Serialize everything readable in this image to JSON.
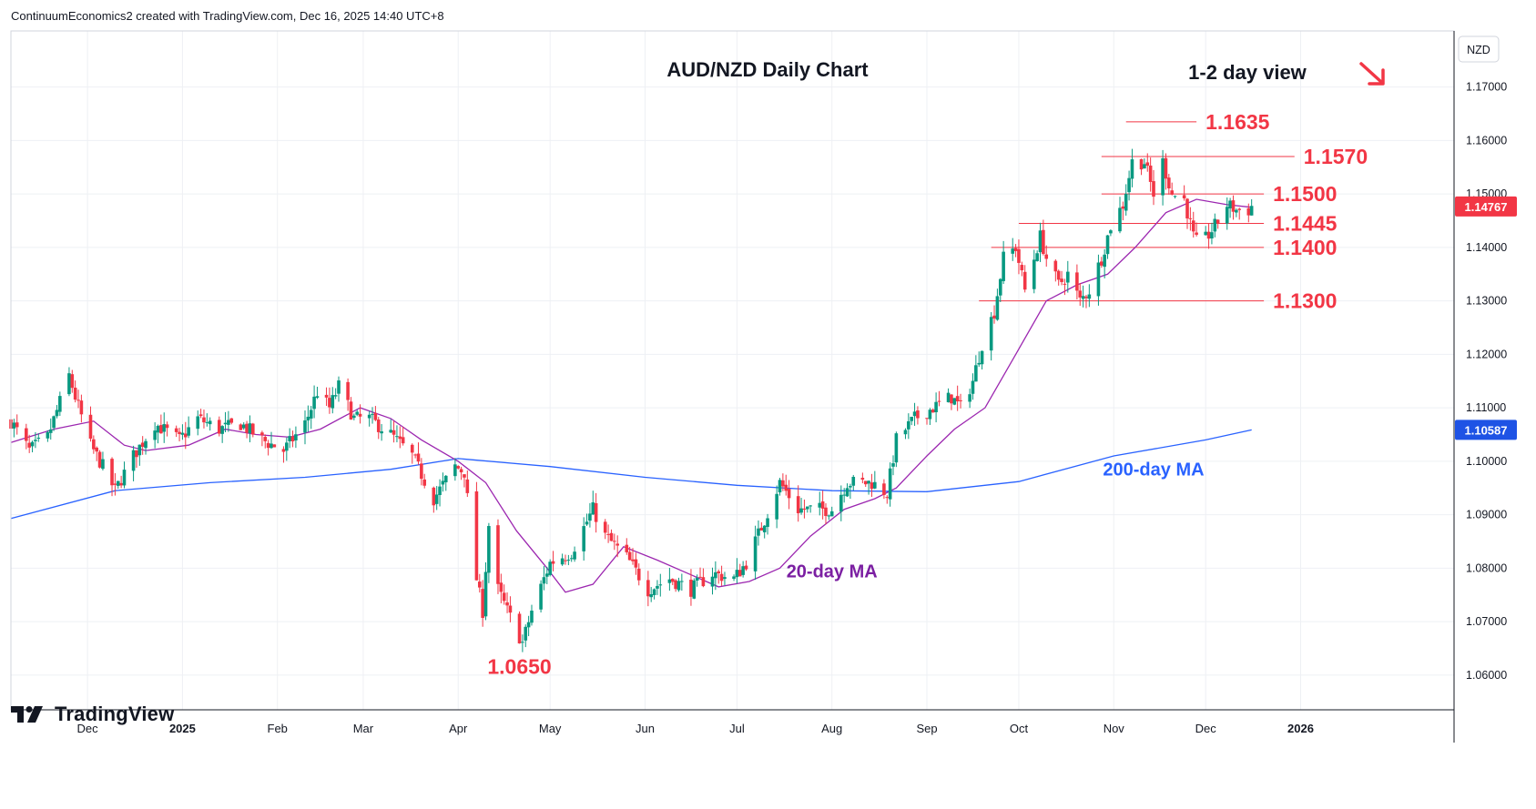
{
  "header": {
    "text": "ContinuumEconomics2 created with TradingView.com, Dec 16, 2025 14:40 UTC+8"
  },
  "footer": {
    "brand": "TradingView",
    "logo_icon": "tradingview-logo-icon"
  },
  "chart_data": {
    "type": "candlestick",
    "title": "AUD/NZD Daily Chart",
    "view_label": "1-2 day view",
    "view_arrow": "down-right-arrow",
    "currency_label": "NZD",
    "y_ticks": [
      "1.06000",
      "1.07000",
      "1.08000",
      "1.09000",
      "1.10000",
      "1.11000",
      "1.12000",
      "1.13000",
      "1.14000",
      "1.15000",
      "1.16000",
      "1.17000"
    ],
    "y_range": [
      1.0535,
      1.1805
    ],
    "x_ticks": [
      {
        "label": "Dec",
        "date": "2024-12-01"
      },
      {
        "label": "2025",
        "date": "2025-01-01"
      },
      {
        "label": "Feb",
        "date": "2025-02-01"
      },
      {
        "label": "Mar",
        "date": "2025-03-01"
      },
      {
        "label": "Apr",
        "date": "2025-04-01"
      },
      {
        "label": "May",
        "date": "2025-05-01"
      },
      {
        "label": "Jun",
        "date": "2025-06-01"
      },
      {
        "label": "Jul",
        "date": "2025-07-01"
      },
      {
        "label": "Aug",
        "date": "2025-08-01"
      },
      {
        "label": "Sep",
        "date": "2025-09-01"
      },
      {
        "label": "Oct",
        "date": "2025-10-01"
      },
      {
        "label": "Nov",
        "date": "2025-11-01"
      },
      {
        "label": "Dec",
        "date": "2025-12-01"
      },
      {
        "label": "2026",
        "date": "2026-01-01"
      }
    ],
    "x_range": [
      "2024-11-06",
      "2026-02-18"
    ],
    "price_badges": [
      {
        "label": "1.14767",
        "value": 1.14767,
        "color": "#f23645"
      },
      {
        "label": "1.10587",
        "value": 1.10587,
        "color": "#1e53e5"
      }
    ],
    "levels": [
      {
        "label": "1.1635",
        "value": 1.1635,
        "from": "2025-11-05",
        "to": "2025-11-28"
      },
      {
        "label": "1.1570",
        "value": 1.157,
        "from": "2025-10-28",
        "to": "2025-12-30"
      },
      {
        "label": "1.1500",
        "value": 1.15,
        "from": "2025-10-28",
        "to": "2025-12-20"
      },
      {
        "label": "1.1445",
        "value": 1.1445,
        "from": "2025-10-01",
        "to": "2025-12-20"
      },
      {
        "label": "1.1400",
        "value": 1.14,
        "from": "2025-09-22",
        "to": "2025-12-20"
      },
      {
        "label": "1.1300",
        "value": 1.13,
        "from": "2025-09-18",
        "to": "2025-12-20"
      }
    ],
    "low_label": {
      "label": "1.0650",
      "value": 1.065,
      "date": "2025-04-21"
    },
    "ma20_label": "20-day MA",
    "ma200_label": "200-day MA",
    "colors": {
      "up": "#089981",
      "down": "#f23645",
      "ma20": "#9c27b0",
      "ma200": "#2962ff",
      "annotation": "#f23645",
      "ma20_text": "#7b1fa2",
      "ma200_text": "#2962ff"
    },
    "close_path": [
      [
        "2024-11-06",
        1.1075
      ],
      [
        "2024-11-12",
        1.102
      ],
      [
        "2024-11-18",
        1.1045
      ],
      [
        "2024-11-25",
        1.116
      ],
      [
        "2024-11-27",
        1.112
      ],
      [
        "2024-12-02",
        1.103
      ],
      [
        "2024-12-06",
        1.099
      ],
      [
        "2024-12-10",
        1.0945
      ],
      [
        "2024-12-16",
        1.101
      ],
      [
        "2024-12-23",
        1.107
      ],
      [
        "2024-12-31",
        1.104
      ],
      [
        "2025-01-06",
        1.108
      ],
      [
        "2025-01-13",
        1.106
      ],
      [
        "2025-01-20",
        1.107
      ],
      [
        "2025-01-27",
        1.104
      ],
      [
        "2025-02-03",
        1.102
      ],
      [
        "2025-02-10",
        1.107
      ],
      [
        "2025-02-14",
        1.113
      ],
      [
        "2025-02-18",
        1.11
      ],
      [
        "2025-02-21",
        1.114
      ],
      [
        "2025-02-26",
        1.108
      ],
      [
        "2025-03-03",
        1.108
      ],
      [
        "2025-03-10",
        1.105
      ],
      [
        "2025-03-17",
        1.101
      ],
      [
        "2025-03-24",
        1.093
      ],
      [
        "2025-03-31",
        1.099
      ],
      [
        "2025-04-03",
        1.098
      ],
      [
        "2025-04-07",
        1.078
      ],
      [
        "2025-04-09",
        1.072
      ],
      [
        "2025-04-11",
        1.088
      ],
      [
        "2025-04-14",
        1.076
      ],
      [
        "2025-04-17",
        1.072
      ],
      [
        "2025-04-22",
        1.066
      ],
      [
        "2025-04-25",
        1.072
      ],
      [
        "2025-05-01",
        1.081
      ],
      [
        "2025-05-08",
        1.083
      ],
      [
        "2025-05-15",
        1.091
      ],
      [
        "2025-05-19",
        1.086
      ],
      [
        "2025-05-26",
        1.082
      ],
      [
        "2025-06-02",
        1.076
      ],
      [
        "2025-06-09",
        1.078
      ],
      [
        "2025-06-16",
        1.076
      ],
      [
        "2025-06-23",
        1.079
      ],
      [
        "2025-06-30",
        1.078
      ],
      [
        "2025-07-04",
        1.081
      ],
      [
        "2025-07-10",
        1.089
      ],
      [
        "2025-07-15",
        1.096
      ],
      [
        "2025-07-21",
        1.091
      ],
      [
        "2025-07-28",
        1.091
      ],
      [
        "2025-08-01",
        1.091
      ],
      [
        "2025-08-06",
        1.096
      ],
      [
        "2025-08-14",
        1.096
      ],
      [
        "2025-08-19",
        1.094
      ],
      [
        "2025-08-22",
        1.104
      ],
      [
        "2025-08-28",
        1.108
      ],
      [
        "2025-09-03",
        1.11
      ],
      [
        "2025-09-09",
        1.112
      ],
      [
        "2025-09-12",
        1.11
      ],
      [
        "2025-09-16",
        1.115
      ],
      [
        "2025-09-19",
        1.122
      ],
      [
        "2025-09-23",
        1.128
      ],
      [
        "2025-09-26",
        1.138
      ],
      [
        "2025-09-30",
        1.14
      ],
      [
        "2025-10-03",
        1.132
      ],
      [
        "2025-10-08",
        1.142
      ],
      [
        "2025-10-10",
        1.138
      ],
      [
        "2025-10-14",
        1.133
      ],
      [
        "2025-10-17",
        1.135
      ],
      [
        "2025-10-21",
        1.13
      ],
      [
        "2025-10-24",
        1.132
      ],
      [
        "2025-10-28",
        1.138
      ],
      [
        "2025-10-31",
        1.144
      ],
      [
        "2025-11-04",
        1.148
      ],
      [
        "2025-11-07",
        1.156
      ],
      [
        "2025-11-11",
        1.156
      ],
      [
        "2025-11-14",
        1.15
      ],
      [
        "2025-11-17",
        1.156
      ],
      [
        "2025-11-20",
        1.15
      ],
      [
        "2025-11-24",
        1.149
      ],
      [
        "2025-11-27",
        1.142
      ],
      [
        "2025-11-29",
        1.14
      ],
      [
        "2025-12-04",
        1.144
      ],
      [
        "2025-12-08",
        1.148
      ],
      [
        "2025-12-11",
        1.147
      ],
      [
        "2025-12-15",
        1.147
      ],
      [
        "2025-12-16",
        1.14767
      ]
    ],
    "ma20_path": [
      [
        "2024-11-06",
        1.1035
      ],
      [
        "2024-11-20",
        1.106
      ],
      [
        "2024-12-03",
        1.1075
      ],
      [
        "2024-12-13",
        1.103
      ],
      [
        "2024-12-20",
        1.102
      ],
      [
        "2025-01-03",
        1.103
      ],
      [
        "2025-01-15",
        1.106
      ],
      [
        "2025-01-25",
        1.105
      ],
      [
        "2025-02-05",
        1.1045
      ],
      [
        "2025-02-15",
        1.106
      ],
      [
        "2025-02-28",
        1.11
      ],
      [
        "2025-03-10",
        1.108
      ],
      [
        "2025-03-20",
        1.104
      ],
      [
        "2025-04-01",
        1.1
      ],
      [
        "2025-04-10",
        1.096
      ],
      [
        "2025-04-20",
        1.087
      ],
      [
        "2025-04-30",
        1.08
      ],
      [
        "2025-05-06",
        1.0755
      ],
      [
        "2025-05-15",
        1.077
      ],
      [
        "2025-05-25",
        1.084
      ],
      [
        "2025-06-05",
        1.0815
      ],
      [
        "2025-06-15",
        1.079
      ],
      [
        "2025-06-25",
        1.0765
      ],
      [
        "2025-07-05",
        1.0775
      ],
      [
        "2025-07-15",
        1.08
      ],
      [
        "2025-07-25",
        1.086
      ],
      [
        "2025-08-05",
        1.091
      ],
      [
        "2025-08-15",
        1.093
      ],
      [
        "2025-08-22",
        1.095
      ],
      [
        "2025-09-01",
        1.101
      ],
      [
        "2025-09-10",
        1.106
      ],
      [
        "2025-09-20",
        1.11
      ],
      [
        "2025-09-30",
        1.12
      ],
      [
        "2025-10-10",
        1.13
      ],
      [
        "2025-10-20",
        1.133
      ],
      [
        "2025-10-30",
        1.135
      ],
      [
        "2025-11-08",
        1.14
      ],
      [
        "2025-11-18",
        1.1465
      ],
      [
        "2025-11-28",
        1.149
      ],
      [
        "2025-12-08",
        1.148
      ],
      [
        "2025-12-16",
        1.1475
      ]
    ],
    "ma200_path": [
      [
        "2024-11-06",
        1.0893
      ],
      [
        "2024-12-10",
        1.0945
      ],
      [
        "2025-01-10",
        1.096
      ],
      [
        "2025-02-10",
        1.097
      ],
      [
        "2025-03-10",
        1.0985
      ],
      [
        "2025-04-01",
        1.1005
      ],
      [
        "2025-05-01",
        1.099
      ],
      [
        "2025-06-01",
        1.097
      ],
      [
        "2025-07-01",
        1.0955
      ],
      [
        "2025-08-01",
        1.0945
      ],
      [
        "2025-09-01",
        1.0943
      ],
      [
        "2025-10-01",
        1.0962
      ],
      [
        "2025-11-01",
        1.101
      ],
      [
        "2025-12-01",
        1.104
      ],
      [
        "2025-12-16",
        1.10587
      ]
    ]
  }
}
